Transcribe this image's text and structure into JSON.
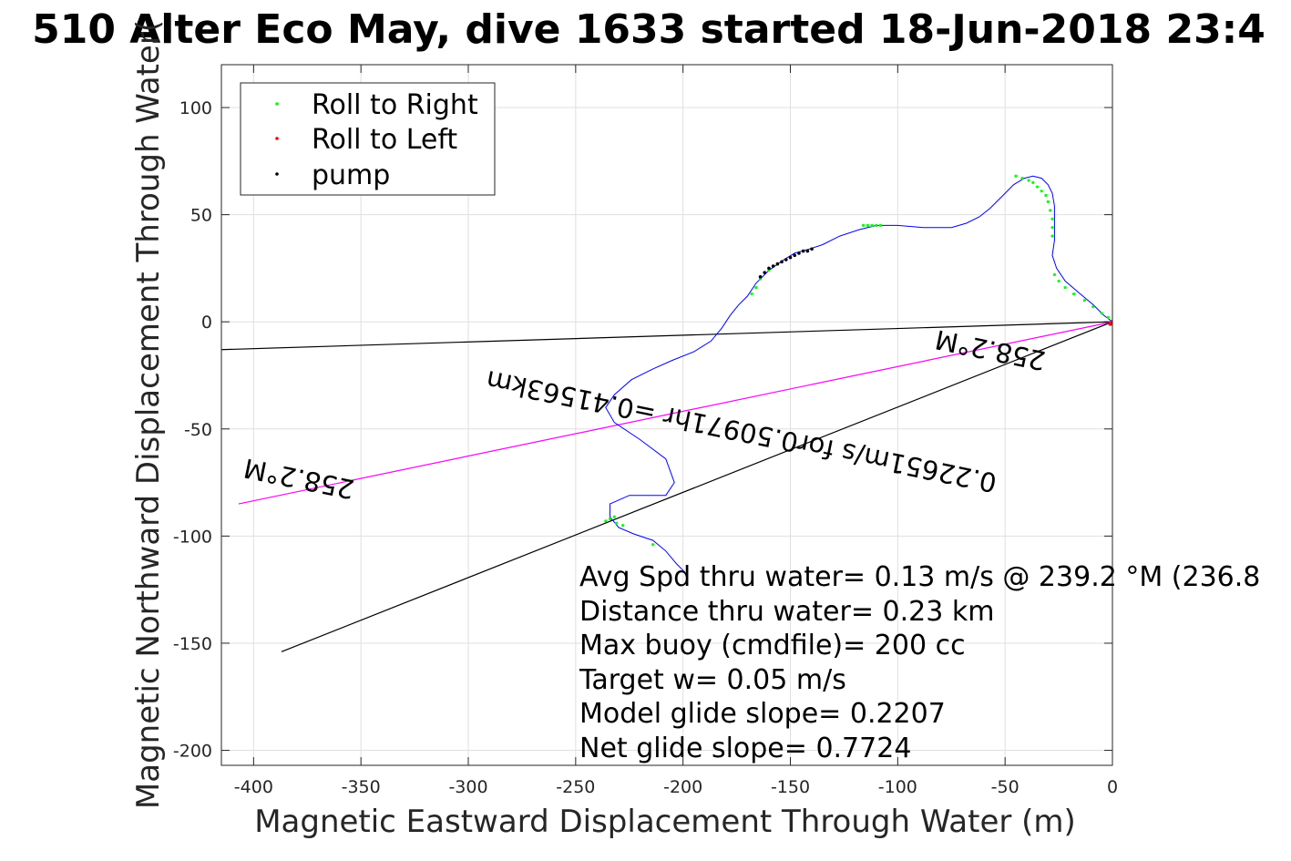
{
  "chart_data": {
    "type": "scatter",
    "title": "510 Alter Eco May, dive 1633 started 18-Jun-2018 23:4",
    "xlabel": "Magnetic Eastward Displacement Through Water (m)",
    "ylabel": "Magnetic Northward Displacement Through Water(",
    "xlim": [
      -415,
      0
    ],
    "ylim": [
      -207,
      120
    ],
    "xticks": [
      -400,
      -350,
      -300,
      -250,
      -200,
      -150,
      -100,
      -50,
      0
    ],
    "yticks": [
      -200,
      -150,
      -100,
      -50,
      0,
      50,
      100
    ],
    "grid": true,
    "legend": {
      "placement": "top-left",
      "entries": [
        {
          "label": "Roll to Right",
          "color": "#00ff00"
        },
        {
          "label": "Roll to Left",
          "color": "#ff0000"
        },
        {
          "label": "pump",
          "color": "#000000"
        }
      ]
    },
    "track": {
      "color": "#0000ff",
      "x": [
        0,
        -4,
        -9,
        -15,
        -22,
        -26,
        -28,
        -27,
        -27,
        -27,
        -28,
        -30,
        -33,
        -37,
        -41,
        -46,
        -50,
        -57,
        -62,
        -68,
        -75,
        -88,
        -100,
        -110,
        -118,
        -127,
        -135,
        -141,
        -148,
        -153,
        -160,
        -166,
        -170,
        -174,
        -178,
        -182,
        -187,
        -195,
        -205,
        -214,
        -224,
        -232,
        -236,
        -232,
        -220,
        -208,
        -204,
        -208,
        -225,
        -234,
        -234,
        -230,
        -223,
        -214,
        -208,
        -203,
        -199
      ],
      "y": [
        0,
        3,
        8,
        13,
        19,
        25,
        31,
        38,
        46,
        54,
        60,
        64,
        67,
        68,
        67,
        64,
        60,
        53,
        49,
        46,
        44,
        44,
        45,
        45,
        43,
        40,
        36,
        34,
        32,
        29,
        24,
        18,
        12,
        8,
        3,
        -3,
        -9,
        -14,
        -18,
        -22,
        -27,
        -34,
        -40,
        -47,
        -55,
        -64,
        -75,
        -81,
        -81,
        -85,
        -91,
        -96,
        -99,
        -102,
        -107,
        -113,
        -117
      ]
    },
    "roll_right_points": {
      "x": [
        -2,
        -5,
        -9,
        -13,
        -18,
        -22,
        -25,
        -27,
        -28,
        -28,
        -28,
        -29,
        -30,
        -31,
        -33,
        -35,
        -37,
        -39,
        -42,
        -45,
        -108,
        -110,
        -112,
        -114,
        -116,
        -160,
        -164,
        -166,
        -168,
        -232,
        -234,
        -236,
        -231,
        -228,
        -214
      ],
      "y": [
        2,
        4,
        7,
        10,
        13,
        16,
        19,
        22,
        40,
        44,
        48,
        52,
        56,
        59,
        61,
        63,
        65,
        66,
        67,
        68,
        45,
        45,
        45,
        45,
        45,
        24,
        20,
        16,
        13,
        -91,
        -92,
        -93,
        -94,
        -95,
        -104
      ]
    },
    "roll_left_points": {
      "x": [
        0,
        -1
      ],
      "y": [
        0,
        -1
      ]
    },
    "pump_points": {
      "x": [
        -140,
        -142,
        -144,
        -146,
        -148,
        -150,
        -152,
        -154,
        -156,
        -158,
        -160,
        -162,
        -164
      ],
      "y": [
        34,
        33,
        33,
        32,
        31,
        30,
        29,
        28,
        27,
        26,
        25,
        23,
        21
      ]
    },
    "reference_lines": [
      {
        "name": "heading-line",
        "x": [
          0,
          -415
        ],
        "y": [
          0,
          -13
        ],
        "color": "#000000"
      },
      {
        "name": "current-line",
        "x": [
          0,
          -407
        ],
        "y": [
          0,
          -85
        ],
        "color": "#ff00ff"
      },
      {
        "name": "gps-line",
        "x": [
          0,
          -387
        ],
        "y": [
          0,
          -154
        ],
        "color": "#000000"
      }
    ],
    "rotated_labels": [
      {
        "text": "258.2°M",
        "x": -56,
        "y": -9,
        "angle": 191.5
      },
      {
        "text": "0.22651m/s for0.50971hr =0.41563km",
        "x": -172,
        "y": -47,
        "angle": 191.5
      },
      {
        "text": "258.2°M",
        "x": -378,
        "y": -69,
        "angle": 191.5
      }
    ],
    "annotations": [
      "Avg Spd thru water=  0.13 m/s @ 239.2 °M (236.8",
      "Distance thru water=  0.23 km",
      "Max buoy (cmdfile)= 200 cc",
      "Target w= 0.05 m/s",
      "Model glide slope= 0.2207",
      "Net glide slope= 0.7724"
    ]
  }
}
